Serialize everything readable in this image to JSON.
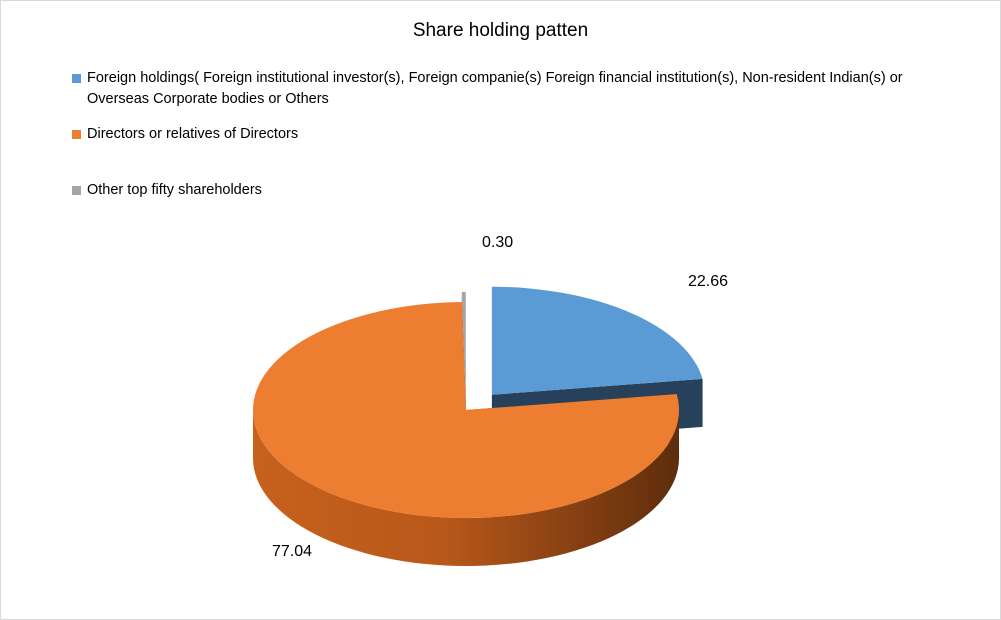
{
  "chart_data": {
    "type": "pie",
    "title": "Share holding patten",
    "legend_position": "top",
    "three_d": true,
    "exploded": true,
    "series": [
      {
        "name": "Foreign holdings( Foreign institutional investor(s), Foreign companie(s) Foreign financial institution(s),  Non-resident Indian(s) or Overseas Corporate bodies or Others",
        "value": 22.66,
        "label": "22.66",
        "color": "#5b9bd5"
      },
      {
        "name": "Directors or relatives of Directors",
        "value": 77.04,
        "label": "77.04",
        "color": "#ed7d31"
      },
      {
        "name": "Other top fifty shareholders",
        "value": 0.3,
        "label": "0.30",
        "color": "#a5a5a5"
      }
    ]
  }
}
